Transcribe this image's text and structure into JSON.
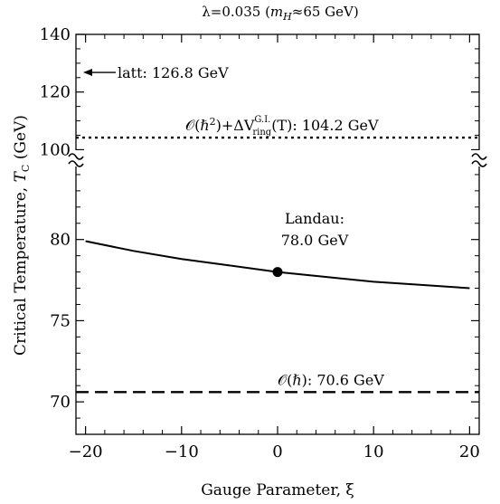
{
  "chart_data": {
    "type": "line",
    "title": "λ=0.035 (m_H≈65 GeV)",
    "title_parts": {
      "lambda": "λ=0.035 (",
      "m": "m",
      "sub": "H",
      "rest": "≈65 GeV)"
    },
    "xlabel": "Gauge Parameter, ξ",
    "ylabel": "Critical Temperature, T_C (GeV)",
    "ylabel_parts": {
      "main": "Critical Temperature, ",
      "T": "T",
      "sub": "C",
      "unit": " (GeV)"
    },
    "xlim": [
      -21,
      21
    ],
    "x_ticks": [
      -20,
      -10,
      0,
      10,
      20
    ],
    "x_tick_labels": [
      "−20",
      "−10",
      "0",
      "10",
      "20"
    ],
    "y_lower_range": [
      68,
      85
    ],
    "y_lower_ticks": [
      70,
      75,
      80
    ],
    "y_upper_range": [
      97,
      140
    ],
    "y_upper_ticks": [
      100,
      120,
      140
    ],
    "axis_break": true,
    "series": [
      {
        "style": "solid",
        "x": [
          -20,
          -15,
          -10,
          -5,
          0,
          5,
          10,
          15,
          20
        ],
        "y": [
          79.9,
          79.3,
          78.8,
          78.4,
          78.0,
          77.7,
          77.4,
          77.2,
          77.0
        ]
      }
    ],
    "hlines": [
      {
        "y": 104.2,
        "style": "dotted",
        "label": "𝒪(ℏ²)+ΔV_ring^G.I.(T): 104.2 GeV"
      },
      {
        "y": 70.6,
        "style": "dashed",
        "label": "𝒪(ℏ): 70.6 GeV"
      }
    ],
    "marker": {
      "x": 0,
      "y": 78.0,
      "label_line1": "Landau:",
      "label_line2": "78.0 GeV"
    },
    "arrow_annotation": {
      "y": 126.8,
      "label": "latt: 126.8 GeV"
    }
  }
}
